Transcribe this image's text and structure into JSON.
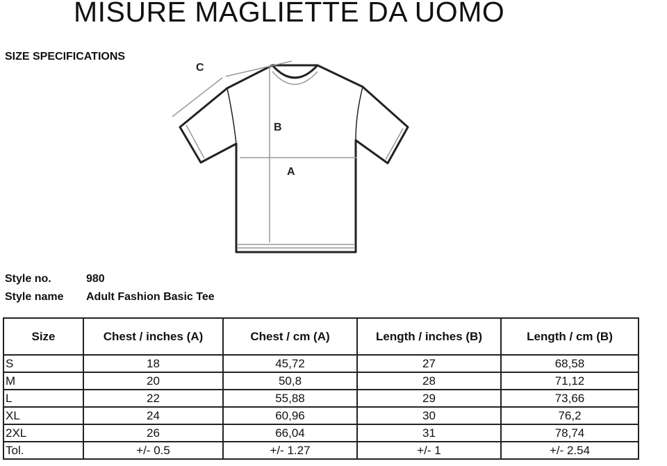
{
  "title": "MISURE MAGLIETTE DA UOMO",
  "section_heading": "SIZE SPECIFICATIONS",
  "diagram": {
    "labels": {
      "a": "A",
      "b": "B",
      "c": "C"
    }
  },
  "style": {
    "number_label": "Style no.",
    "number_value": "980",
    "name_label": "Style name",
    "name_value": "Adult Fashion Basic Tee"
  },
  "table": {
    "headers": [
      "Size",
      "Chest / inches (A)",
      "Chest / cm (A)",
      "Length / inches (B)",
      "Length / cm (B)"
    ],
    "rows": [
      [
        "S",
        "18",
        "45,72",
        "27",
        "68,58"
      ],
      [
        "M",
        "20",
        "50,8",
        "28",
        "71,12"
      ],
      [
        "L",
        "22",
        "55,88",
        "29",
        "73,66"
      ],
      [
        "XL",
        "24",
        "60,96",
        "30",
        "76,2"
      ],
      [
        "2XL",
        "26",
        "66,04",
        "31",
        "78,74"
      ],
      [
        "Tol.",
        "+/- 0.5",
        "+/- 1.27",
        "+/- 1",
        "+/- 2.54"
      ]
    ]
  }
}
